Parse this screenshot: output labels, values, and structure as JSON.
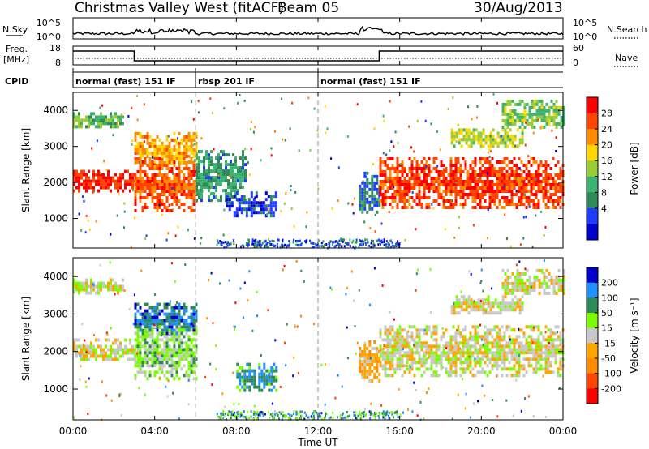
{
  "header": {
    "title": "Christmas Valley West (fitACF)",
    "beam": "Beam 05",
    "date": "30/Aug/2013"
  },
  "nsky_panel": {
    "left_label": "N.Sky",
    "right_label": "N.Search",
    "left_ticks": [
      "10^5",
      "10^0"
    ],
    "right_ticks": [
      "10^5",
      "10^0"
    ]
  },
  "freq_panel": {
    "left_label_1": "Freq.",
    "left_label_2": "[MHz]",
    "right_label": "Nave",
    "left_ticks": [
      "18",
      "8"
    ],
    "right_ticks": [
      "60",
      "0"
    ],
    "freq_steps": [
      {
        "from": 0.0,
        "to": 3.0,
        "level": "high"
      },
      {
        "from": 3.0,
        "to": 15.0,
        "level": "low"
      },
      {
        "from": 15.0,
        "to": 24.0,
        "level": "high"
      }
    ]
  },
  "cpid": {
    "label": "CPID",
    "segments": [
      {
        "from": 0.0,
        "to": 6.0,
        "text": "normal (fast) 151 IF"
      },
      {
        "from": 6.0,
        "to": 12.0,
        "text": "rbsp 201 IF"
      },
      {
        "from": 12.0,
        "to": 24.0,
        "text": "normal (fast) 151 IF"
      }
    ]
  },
  "chart_data": [
    {
      "type": "heatmap",
      "quantity": "Power",
      "ylabel": "Slant Range [km]",
      "xlabel": "Time UT",
      "xlim": [
        0,
        24
      ],
      "ylim": [
        180,
        4500
      ],
      "x_ticks": [
        "00:00",
        "04:00",
        "08:00",
        "12:00",
        "16:00",
        "20:00",
        "00:00"
      ],
      "y_ticks": [
        1000,
        2000,
        3000,
        4000
      ],
      "colorbar": {
        "label": "Power [dB]",
        "ticks": [
          "28",
          "24",
          "20",
          "16",
          "12",
          "8",
          "4"
        ],
        "colors": [
          "#ff0000",
          "#ff4500",
          "#ff8c00",
          "#ffd700",
          "#9acd32",
          "#3cb371",
          "#2e8b57",
          "#1e3cff",
          "#0000cd"
        ]
      },
      "bands": [
        {
          "t0": 0.0,
          "t1": 3.0,
          "r0": 1750,
          "r1": 2350,
          "level": 0.95
        },
        {
          "t0": 0.0,
          "t1": 2.5,
          "r0": 3550,
          "r1": 3950,
          "level": 0.4
        },
        {
          "t0": 3.0,
          "t1": 6.0,
          "r0": 2500,
          "r1": 3400,
          "level": 0.7
        },
        {
          "t0": 3.0,
          "t1": 6.0,
          "r0": 1250,
          "r1": 2700,
          "level": 0.85
        },
        {
          "t0": 6.0,
          "t1": 8.5,
          "r0": 1500,
          "r1": 2900,
          "level": 0.3
        },
        {
          "t0": 7.5,
          "t1": 10.0,
          "r0": 1100,
          "r1": 1750,
          "level": 0.1
        },
        {
          "t0": 14.0,
          "t1": 15.0,
          "r0": 1200,
          "r1": 2300,
          "level": 0.2
        },
        {
          "t0": 15.0,
          "t1": 24.0,
          "r0": 1300,
          "r1": 2700,
          "level": 0.9
        },
        {
          "t0": 18.5,
          "t1": 22.0,
          "r0": 3000,
          "r1": 3500,
          "level": 0.55
        },
        {
          "t0": 21.0,
          "t1": 24.0,
          "r0": 3550,
          "r1": 4300,
          "level": 0.45
        }
      ]
    },
    {
      "type": "heatmap",
      "quantity": "Velocity",
      "ylabel": "Slant Range [km]",
      "xlabel": "Time UT",
      "xlim": [
        0,
        24
      ],
      "ylim": [
        180,
        4500
      ],
      "x_ticks": [
        "00:00",
        "04:00",
        "08:00",
        "12:00",
        "16:00",
        "20:00",
        "00:00"
      ],
      "y_ticks": [
        1000,
        2000,
        3000,
        4000
      ],
      "colorbar": {
        "label": "Velocity [m s⁻¹]",
        "ticks": [
          "200",
          "100",
          "50",
          "15",
          "-15",
          "-50",
          "-100",
          "-200"
        ],
        "colors": [
          "#0000cd",
          "#1e90ff",
          "#2e8b57",
          "#7cfc00",
          "#c8c8c8",
          "#ffa500",
          "#ff8c00",
          "#ff4500",
          "#ff0000"
        ]
      },
      "bands": [
        {
          "t0": 0.0,
          "t1": 3.0,
          "r0": 1750,
          "r1": 2350,
          "level": 0.5
        },
        {
          "t0": 0.0,
          "t1": 2.5,
          "r0": 3600,
          "r1": 3950,
          "level": 0.5
        },
        {
          "t0": 3.0,
          "t1": 6.0,
          "r0": 2500,
          "r1": 3300,
          "level": 0.85
        },
        {
          "t0": 3.0,
          "t1": 6.0,
          "r0": 1300,
          "r1": 2700,
          "level": 0.6
        },
        {
          "t0": 8.0,
          "t1": 10.0,
          "r0": 1000,
          "r1": 1700,
          "level": 0.8
        },
        {
          "t0": 14.0,
          "t1": 15.0,
          "r0": 1200,
          "r1": 2300,
          "level": 0.35
        },
        {
          "t0": 15.0,
          "t1": 24.0,
          "r0": 1400,
          "r1": 2700,
          "level": 0.5
        },
        {
          "t0": 18.5,
          "t1": 22.0,
          "r0": 3000,
          "r1": 3500,
          "level": 0.5
        },
        {
          "t0": 21.0,
          "t1": 24.0,
          "r0": 3550,
          "r1": 4200,
          "level": 0.5
        }
      ]
    }
  ]
}
